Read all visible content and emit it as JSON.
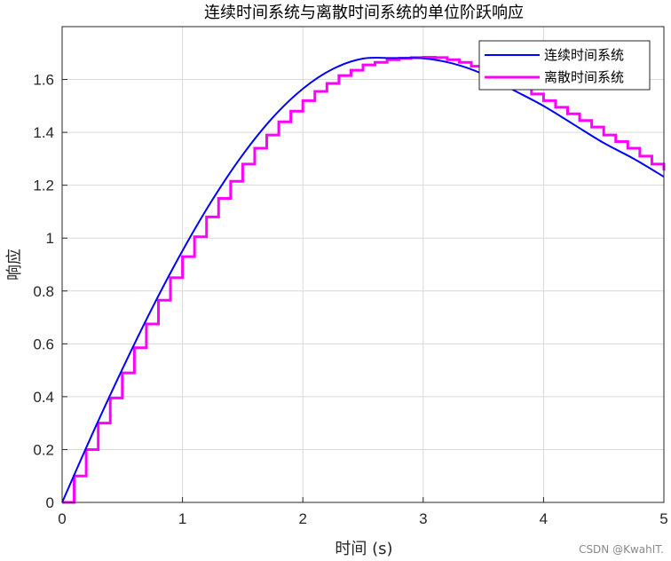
{
  "chart_data": {
    "type": "line",
    "title": "连续时间系统与离散时间系统的单位阶跃响应",
    "xlabel": "时间 (s)",
    "ylabel": "响应",
    "xlim": [
      0,
      5
    ],
    "ylim": [
      0,
      1.8
    ],
    "xticks": [
      "0",
      "1",
      "2",
      "3",
      "4",
      "5"
    ],
    "yticks": [
      "0",
      "0.2",
      "0.4",
      "0.6",
      "0.8",
      "1",
      "1.2",
      "1.4",
      "1.6"
    ],
    "grid": true,
    "legend_position": "top-right",
    "series": [
      {
        "name": "连续时间系统",
        "style": "smooth-line",
        "color": "#0000ff",
        "x": [
          0,
          0.25,
          0.5,
          0.75,
          1,
          1.25,
          1.5,
          1.75,
          2,
          2.25,
          2.5,
          2.75,
          3,
          3.25,
          3.5,
          3.75,
          4,
          4.25,
          4.5,
          4.75,
          5
        ],
        "y": [
          0,
          0.258,
          0.504,
          0.737,
          0.952,
          1.146,
          1.315,
          1.456,
          1.565,
          1.64,
          1.679,
          1.681,
          1.68,
          1.66,
          1.62,
          1.56,
          1.5,
          1.43,
          1.36,
          1.3,
          1.232
        ]
      },
      {
        "name": "离散时间系统",
        "style": "stairs",
        "color": "#ff00ff",
        "x": [
          0,
          0.1,
          0.2,
          0.3,
          0.4,
          0.5,
          0.6,
          0.7,
          0.8,
          0.9,
          1.0,
          1.1,
          1.2,
          1.3,
          1.4,
          1.5,
          1.6,
          1.7,
          1.8,
          1.9,
          2.0,
          2.1,
          2.2,
          2.3,
          2.4,
          2.5,
          2.6,
          2.7,
          2.8,
          2.9,
          3.0,
          3.1,
          3.2,
          3.3,
          3.4,
          3.5,
          3.6,
          3.7,
          3.8,
          3.9,
          4.0,
          4.1,
          4.2,
          4.3,
          4.4,
          4.5,
          4.6,
          4.7,
          4.8,
          4.9,
          5.0
        ],
        "y": [
          0,
          0.1,
          0.2,
          0.3,
          0.395,
          0.49,
          0.585,
          0.675,
          0.765,
          0.85,
          0.93,
          1.005,
          1.08,
          1.15,
          1.215,
          1.28,
          1.34,
          1.39,
          1.44,
          1.48,
          1.52,
          1.555,
          1.585,
          1.615,
          1.635,
          1.655,
          1.665,
          1.675,
          1.68,
          1.683,
          1.684,
          1.683,
          1.675,
          1.665,
          1.65,
          1.635,
          1.615,
          1.59,
          1.57,
          1.545,
          1.52,
          1.495,
          1.47,
          1.445,
          1.42,
          1.39,
          1.365,
          1.34,
          1.31,
          1.28,
          1.255
        ]
      }
    ]
  },
  "watermark": "CSDN @KwahIT."
}
